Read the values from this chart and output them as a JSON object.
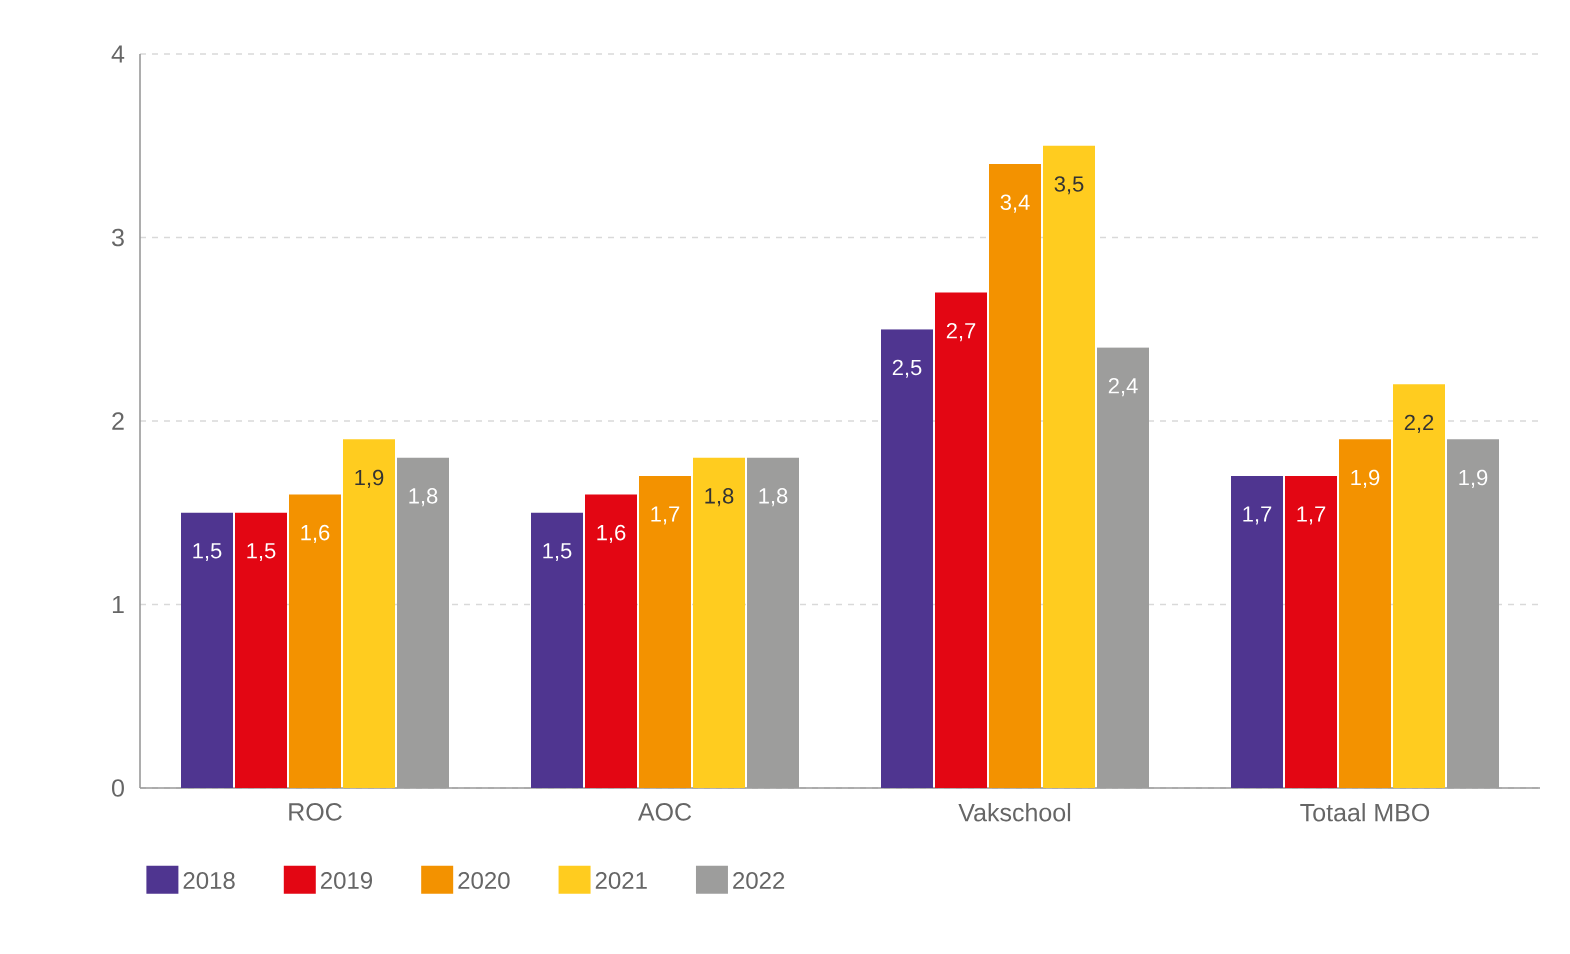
{
  "chart_data": {
    "type": "bar",
    "categories": [
      "ROC",
      "AOC",
      "Vakschool",
      "Totaal MBO"
    ],
    "series": [
      {
        "name": "2018",
        "color": "#4f3590",
        "values": [
          1.5,
          1.5,
          2.5,
          1.7
        ],
        "value_labels": [
          "1,5",
          "1,5",
          "2,5",
          "1,7"
        ]
      },
      {
        "name": "2019",
        "color": "#e30613",
        "values": [
          1.5,
          1.6,
          2.7,
          1.7
        ],
        "value_labels": [
          "1,5",
          "1,6",
          "2,7",
          "1,7"
        ]
      },
      {
        "name": "2020",
        "color": "#f39200",
        "values": [
          1.6,
          1.7,
          3.4,
          1.9
        ],
        "value_labels": [
          "1,6",
          "1,7",
          "3,4",
          "1,9"
        ]
      },
      {
        "name": "2021",
        "color": "#ffcc1f",
        "values": [
          1.9,
          1.8,
          3.5,
          2.2
        ],
        "value_labels": [
          "1,9",
          "1,8",
          "3,5",
          "2,2"
        ]
      },
      {
        "name": "2022",
        "color": "#9d9d9c",
        "values": [
          1.8,
          1.8,
          2.4,
          1.9
        ],
        "value_labels": [
          "1,8",
          "1,8",
          "2,4",
          "1,9"
        ]
      }
    ],
    "ylim": [
      0,
      4
    ],
    "yticks": [
      0,
      1,
      2,
      3,
      4
    ],
    "grid": "y",
    "legend": "bottom left"
  }
}
